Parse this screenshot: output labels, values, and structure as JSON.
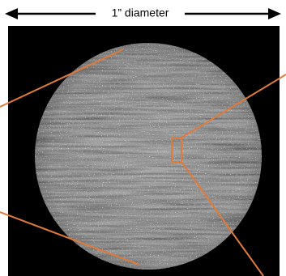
{
  "annotation": {
    "label": "1” diameter"
  }
}
